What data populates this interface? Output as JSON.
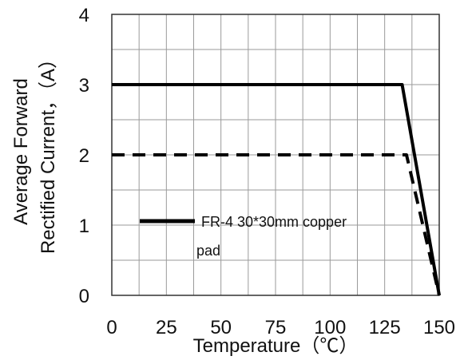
{
  "chart_data": {
    "type": "line",
    "title": "",
    "xlabel": "Temperature（℃）",
    "ylabel_lines": [
      "Average  Forward",
      "Rectified Current，（A）"
    ],
    "xlim": [
      0,
      150
    ],
    "ylim": [
      0,
      4
    ],
    "x_ticks": [
      "0",
      "25",
      "50",
      "75",
      "100",
      "125",
      "150"
    ],
    "y_ticks": [
      "0",
      "1",
      "2",
      "3",
      "4"
    ],
    "grid": true,
    "legend_position": "lower-left",
    "series": [
      {
        "name": "FR-4  30*30mm copper pad",
        "style": "solid",
        "x": [
          0,
          133,
          150
        ],
        "y": [
          3,
          3,
          0
        ]
      },
      {
        "style": "dashed",
        "x": [
          0,
          135,
          150
        ],
        "y": [
          2,
          2,
          0
        ]
      }
    ],
    "legend": {
      "line1": "FR-4  30*30mm copper",
      "line2": "pad"
    },
    "colors": {
      "line": "#000000",
      "grid": "#9a9a9a",
      "axis": "#333333"
    }
  }
}
